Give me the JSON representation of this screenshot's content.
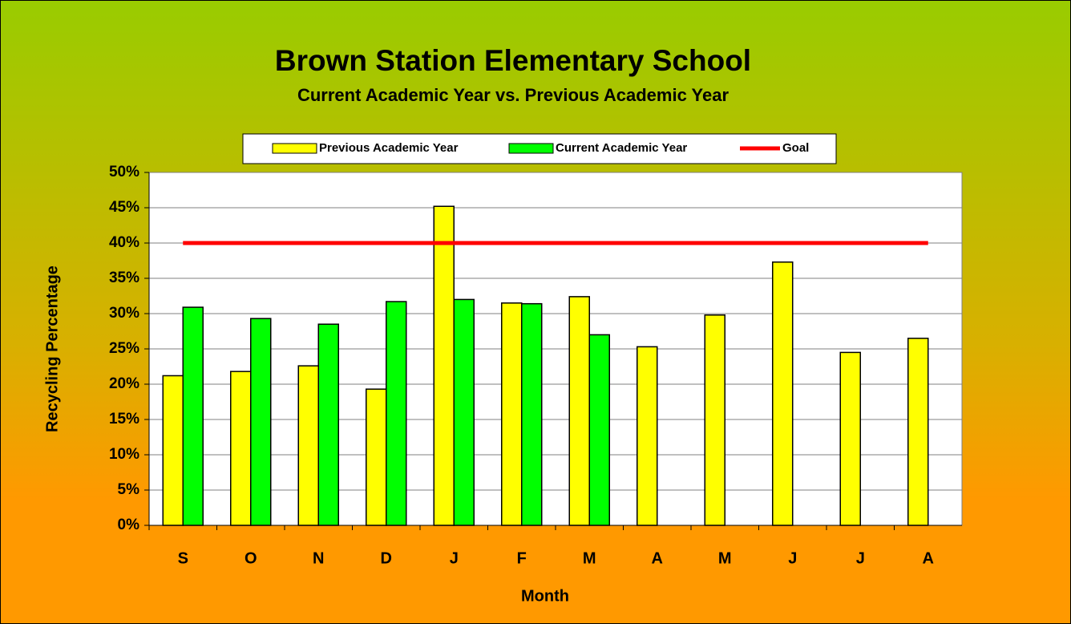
{
  "chart_data": {
    "type": "bar",
    "title": "Brown Station Elementary School",
    "subtitle": "Current Academic Year vs. Previous Academic Year",
    "x_label": "Month",
    "y_label": "Recycling Percentage",
    "categories": [
      "S",
      "O",
      "N",
      "D",
      "J",
      "F",
      "M",
      "A",
      "M",
      "J",
      "J",
      "A"
    ],
    "series": [
      {
        "name": "Previous Academic Year",
        "color": "#ffff00",
        "type": "bar",
        "values": [
          21.2,
          21.8,
          22.6,
          19.3,
          45.2,
          31.5,
          32.4,
          25.3,
          29.8,
          37.3,
          24.5,
          26.5
        ]
      },
      {
        "name": "Current Academic Year",
        "color": "#00ff00",
        "type": "bar",
        "values": [
          30.9,
          29.3,
          28.5,
          31.7,
          32.0,
          31.4,
          27.0,
          null,
          null,
          null,
          null,
          null
        ]
      },
      {
        "name": "Goal",
        "color": "#ff0000",
        "type": "line",
        "values": [
          40,
          40,
          40,
          40,
          40,
          40,
          40,
          40,
          40,
          40,
          40,
          40
        ]
      }
    ],
    "ylim": [
      0,
      50
    ],
    "yticks": [
      {
        "value": 0,
        "label": "0%"
      },
      {
        "value": 5,
        "label": "5%"
      },
      {
        "value": 10,
        "label": "10%"
      },
      {
        "value": 15,
        "label": "15%"
      },
      {
        "value": 20,
        "label": "20%"
      },
      {
        "value": 25,
        "label": "25%"
      },
      {
        "value": 30,
        "label": "30%"
      },
      {
        "value": 35,
        "label": "35%"
      },
      {
        "value": 40,
        "label": "40%"
      },
      {
        "value": 45,
        "label": "45%"
      },
      {
        "value": 50,
        "label": "50%"
      }
    ],
    "grid": true,
    "legend": "top"
  }
}
